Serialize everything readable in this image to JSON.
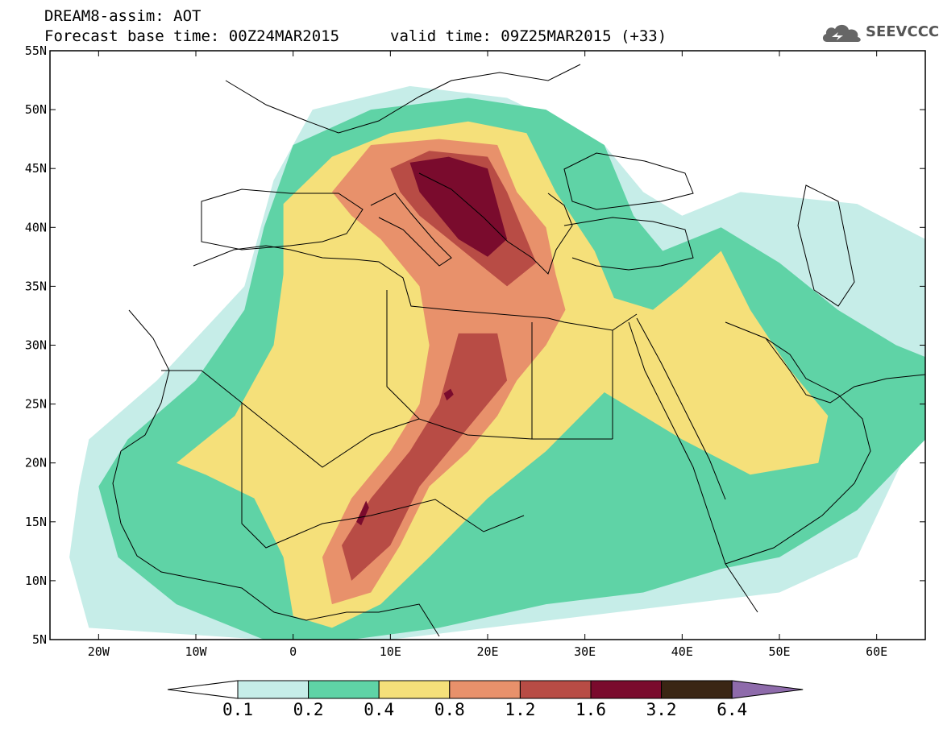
{
  "header": {
    "title": "DREAM8-assim: AOT",
    "base_time": "Forecast base time: 00Z24MAR2015",
    "valid_time": "valid time: 09Z25MAR2015 (+33)"
  },
  "logo": {
    "text": "SEEVCCC",
    "icon": "cloud-icon"
  },
  "chart_data": {
    "type": "heatmap",
    "title": "DREAM8-assim: AOT",
    "variable": "AOT",
    "projection": "lat-lon",
    "xlim": [
      -25,
      65
    ],
    "ylim": [
      5,
      55
    ],
    "x_ticks": [
      -20,
      -10,
      0,
      10,
      20,
      30,
      40,
      50,
      60
    ],
    "x_tick_labels": [
      "20W",
      "10W",
      "0",
      "10E",
      "20E",
      "30E",
      "40E",
      "50E",
      "60E"
    ],
    "y_ticks": [
      5,
      10,
      15,
      20,
      25,
      30,
      35,
      40,
      45,
      50,
      55
    ],
    "y_tick_labels": [
      "5N",
      "10N",
      "15N",
      "20N",
      "25N",
      "30N",
      "35N",
      "40N",
      "45N",
      "50N",
      "55N"
    ],
    "colorbar": {
      "levels": [
        "0.1",
        "0.2",
        "0.4",
        "0.8",
        "1.2",
        "1.6",
        "3.2",
        "6.4"
      ],
      "colors": [
        "#c6ede8",
        "#5fd3a6",
        "#f5e07a",
        "#e8916b",
        "#b84c45",
        "#7a0b2d",
        "#3a2614",
        "#8e6bab"
      ],
      "under_color": "#ffffff",
      "over_color": "#8e6bab"
    },
    "plumes": [
      {
        "level": "0.1",
        "color": "#c6ede8",
        "polygon": [
          [
            -21,
            22
          ],
          [
            -14,
            27
          ],
          [
            -5,
            35
          ],
          [
            -2,
            44
          ],
          [
            2,
            50
          ],
          [
            12,
            52
          ],
          [
            22,
            51
          ],
          [
            32,
            47
          ],
          [
            36,
            43
          ],
          [
            40,
            41
          ],
          [
            46,
            43
          ],
          [
            58,
            42
          ],
          [
            65,
            39
          ],
          [
            65,
            24
          ],
          [
            62,
            19
          ],
          [
            58,
            12
          ],
          [
            50,
            9
          ],
          [
            40,
            8
          ],
          [
            30,
            7
          ],
          [
            20,
            6
          ],
          [
            10,
            5
          ],
          [
            -3,
            5
          ],
          [
            -21,
            6
          ],
          [
            -23,
            12
          ],
          [
            -22,
            18
          ]
        ]
      },
      {
        "level": "0.2",
        "color": "#5fd3a6",
        "polygon": [
          [
            -17,
            22
          ],
          [
            -10,
            27
          ],
          [
            -5,
            33
          ],
          [
            -3,
            40
          ],
          [
            0,
            47
          ],
          [
            8,
            50
          ],
          [
            18,
            51
          ],
          [
            26,
            50
          ],
          [
            32,
            47
          ],
          [
            35,
            41
          ],
          [
            38,
            38
          ],
          [
            44,
            40
          ],
          [
            50,
            37
          ],
          [
            56,
            33
          ],
          [
            62,
            30
          ],
          [
            65,
            29
          ],
          [
            65,
            22
          ],
          [
            58,
            16
          ],
          [
            50,
            12
          ],
          [
            44,
            11
          ],
          [
            36,
            9
          ],
          [
            26,
            8
          ],
          [
            15,
            6
          ],
          [
            6,
            5
          ],
          [
            -3,
            5
          ],
          [
            -12,
            8
          ],
          [
            -18,
            12
          ],
          [
            -20,
            18
          ]
        ]
      },
      {
        "level": "0.4",
        "color": "#f5e07a",
        "polygon": [
          [
            -12,
            20
          ],
          [
            -6,
            24
          ],
          [
            -2,
            30
          ],
          [
            -1,
            36
          ],
          [
            -1,
            42
          ],
          [
            4,
            46
          ],
          [
            10,
            48
          ],
          [
            18,
            49
          ],
          [
            24,
            48
          ],
          [
            27,
            43
          ],
          [
            31,
            38
          ],
          [
            33,
            34
          ],
          [
            37,
            33
          ],
          [
            40,
            35
          ],
          [
            44,
            38
          ],
          [
            47,
            33
          ],
          [
            51,
            28
          ],
          [
            55,
            24
          ],
          [
            54,
            20
          ],
          [
            47,
            19
          ],
          [
            40,
            22
          ],
          [
            32,
            26
          ],
          [
            26,
            21
          ],
          [
            20,
            17
          ],
          [
            14,
            12
          ],
          [
            9,
            8
          ],
          [
            4,
            6
          ],
          [
            0,
            7
          ],
          [
            -1,
            12
          ],
          [
            -4,
            17
          ],
          [
            -9,
            19
          ]
        ]
      },
      {
        "level": "0.8",
        "color": "#e8916b",
        "polygon": [
          [
            4,
            43
          ],
          [
            8,
            47
          ],
          [
            15,
            47.5
          ],
          [
            21,
            47
          ],
          [
            23,
            43
          ],
          [
            26,
            40
          ],
          [
            27,
            36
          ],
          [
            28,
            33
          ],
          [
            26,
            30
          ],
          [
            23,
            27
          ],
          [
            21,
            24
          ],
          [
            18,
            21
          ],
          [
            14,
            18
          ],
          [
            11,
            13
          ],
          [
            8,
            9
          ],
          [
            4,
            8
          ],
          [
            3,
            12
          ],
          [
            6,
            17
          ],
          [
            10,
            21
          ],
          [
            13,
            25
          ],
          [
            14,
            30
          ],
          [
            13,
            35
          ],
          [
            9,
            39
          ],
          [
            6,
            41
          ]
        ]
      },
      {
        "level": "1.2",
        "color": "#b84c45",
        "polygon": [
          [
            10,
            45
          ],
          [
            14,
            46.5
          ],
          [
            20,
            46
          ],
          [
            22,
            43
          ],
          [
            24,
            39
          ],
          [
            25,
            37
          ],
          [
            22,
            35
          ],
          [
            19,
            37
          ],
          [
            16,
            39
          ],
          [
            13,
            41
          ],
          [
            11,
            43
          ]
        ]
      },
      {
        "level": "1.2",
        "color": "#b84c45",
        "polygon": [
          [
            17,
            31
          ],
          [
            21,
            31
          ],
          [
            22,
            27
          ],
          [
            19,
            24
          ],
          [
            16,
            21
          ],
          [
            13,
            18
          ],
          [
            10,
            13
          ],
          [
            6,
            10
          ],
          [
            5,
            13
          ],
          [
            8,
            17
          ],
          [
            12,
            21
          ],
          [
            15,
            25
          ]
        ]
      },
      {
        "level": "1.6",
        "color": "#7a0b2d",
        "polygon": [
          [
            12,
            45.5
          ],
          [
            16,
            46
          ],
          [
            20,
            45
          ],
          [
            21,
            42
          ],
          [
            22,
            39
          ],
          [
            20,
            37.5
          ],
          [
            17,
            39
          ],
          [
            15,
            41
          ],
          [
            13,
            43
          ]
        ]
      },
      {
        "level": "1.6",
        "color": "#7a0b2d",
        "polygon": [
          [
            15.8,
            25.3
          ],
          [
            16.5,
            25.8
          ],
          [
            16.2,
            26.3
          ],
          [
            15.5,
            25.9
          ]
        ]
      },
      {
        "level": "1.6",
        "color": "#7a0b2d",
        "polygon": [
          [
            6.5,
            15
          ],
          [
            7.5,
            16.8
          ],
          [
            7.8,
            16.2
          ],
          [
            7,
            14.7
          ]
        ]
      }
    ]
  }
}
